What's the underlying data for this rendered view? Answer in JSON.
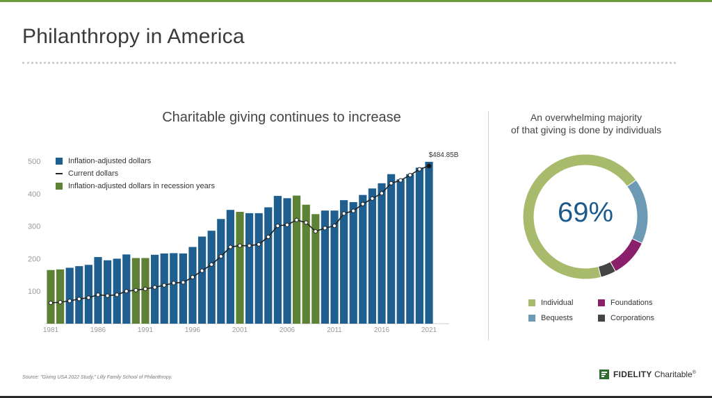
{
  "page": {
    "title": "Philanthropy in America",
    "source": "Source: \"Giving USA 2022 Study,\" Lilly Family School of Philanthropy.",
    "logo_bold": "FIDELITY",
    "logo_rest": " Charitable",
    "logo_mark": "®"
  },
  "colors": {
    "topbar": "#6a9a3a",
    "bar": "#1e5f8f",
    "recession": "#5d8235",
    "line": "#222222",
    "individual": "#a8ba6c",
    "bequests": "#6c99b3",
    "foundations": "#8a1f6b",
    "corporations": "#444444"
  },
  "chart_data": [
    {
      "type": "bar",
      "title": "Charitable giving continues to increase",
      "xlabel": "",
      "ylabel": "",
      "ylim": [
        0,
        520
      ],
      "yticks": [
        100,
        200,
        300,
        400,
        500
      ],
      "xticks": [
        1981,
        1986,
        1991,
        1996,
        2001,
        2006,
        2011,
        2016,
        2021
      ],
      "legend": [
        "Inflation-adjusted dollars",
        "Current dollars",
        "Inflation-adjusted dollars in recession years"
      ],
      "legend_position": "top-left",
      "grid": false,
      "annotation": {
        "label": "$484.85B",
        "year": 2021,
        "value": 484.85
      },
      "years": [
        1981,
        1982,
        1983,
        1984,
        1985,
        1986,
        1987,
        1988,
        1989,
        1990,
        1991,
        1992,
        1993,
        1994,
        1995,
        1996,
        1997,
        1998,
        1999,
        2000,
        2001,
        2002,
        2003,
        2004,
        2005,
        2006,
        2007,
        2008,
        2009,
        2010,
        2011,
        2012,
        2013,
        2014,
        2015,
        2016,
        2017,
        2018,
        2019,
        2020,
        2021
      ],
      "inflation_adjusted": [
        165,
        167,
        172,
        177,
        181,
        205,
        195,
        200,
        213,
        202,
        202,
        212,
        216,
        217,
        216,
        236,
        268,
        286,
        322,
        350,
        344,
        340,
        340,
        358,
        393,
        386,
        394,
        366,
        337,
        348,
        348,
        380,
        374,
        396,
        416,
        432,
        460,
        444,
        460,
        480,
        498
      ],
      "recession_years": [
        1981,
        1982,
        1990,
        1991,
        2001,
        2007,
        2008,
        2009
      ],
      "current_dollars": [
        64,
        66,
        70,
        76,
        80,
        89,
        86,
        89,
        100,
        103,
        107,
        112,
        118,
        125,
        127,
        143,
        163,
        182,
        207,
        236,
        240,
        240,
        244,
        267,
        301,
        304,
        319,
        311,
        284,
        294,
        301,
        339,
        347,
        368,
        385,
        401,
        432,
        441,
        457,
        475,
        485
      ]
    },
    {
      "type": "pie",
      "title": "An overwhelming majority of that giving is done by individuals",
      "title_lines": [
        "An overwhelming majority",
        "of that giving is done by individuals"
      ],
      "center_label": "69%",
      "categories": [
        "Individual",
        "Bequests",
        "Foundations",
        "Corporations"
      ],
      "values": [
        69,
        17,
        10,
        4
      ],
      "legend_position": "bottom"
    }
  ]
}
